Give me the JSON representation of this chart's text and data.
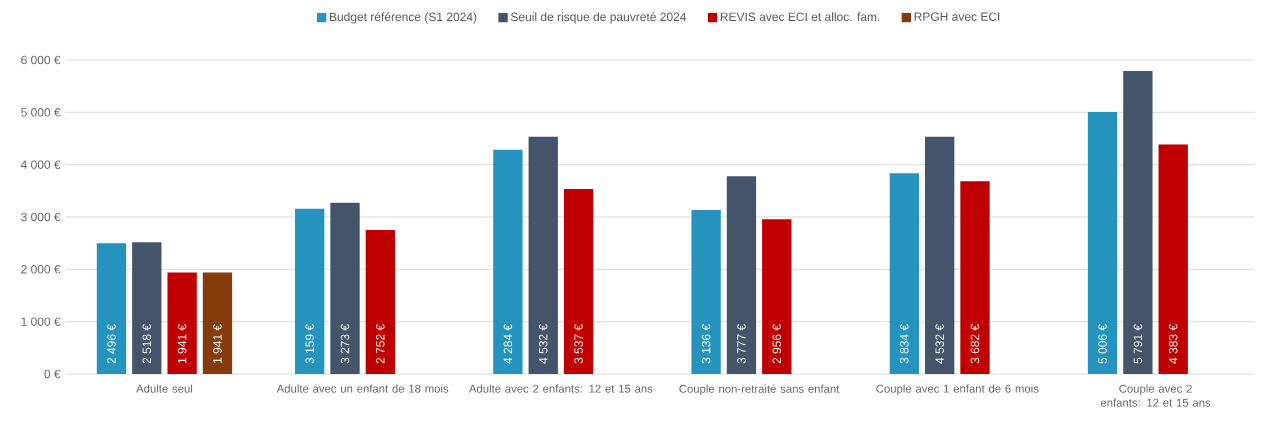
{
  "chart_data": {
    "type": "bar",
    "categories": [
      "Adulte seul",
      "Adulte avec un enfant de 18 mois",
      "Adulte avec 2 enfants: 12 et 15 ans",
      "Couple non-retraité sans enfant",
      "Couple avec 1 enfant de 6 mois",
      "Couple avec 2 enfants:  12 et 15 ans"
    ],
    "series": [
      {
        "name": "Budget référence (S1 2024)",
        "color": "#2494be",
        "values": [
          2496,
          3159,
          4284,
          3136,
          3834,
          5006
        ],
        "value_labels": [
          "2 496 €",
          "3 159 €",
          "4 284 €",
          "3 136 €",
          "3 834 €",
          "5 006 €"
        ]
      },
      {
        "name": "Seuil de risque de pauvreté 2024",
        "color": "#44546a",
        "values": [
          2518,
          3273,
          4532,
          3777,
          4532,
          5791
        ],
        "value_labels": [
          "2 518 €",
          "3 273 €",
          "4 532 €",
          "3 777 €",
          "4 532 €",
          "5 791 €"
        ]
      },
      {
        "name": "REVIS avec ECI et alloc. fam.",
        "color": "#c00000",
        "values": [
          1941,
          2752,
          3537,
          2956,
          3682,
          4383
        ],
        "value_labels": [
          "1 941 €",
          "2 752 €",
          "3 537 €",
          "2 956 €",
          "3 682 €",
          "4 383 €"
        ]
      },
      {
        "name": "RPGH avec ECI",
        "color": "#843c0c",
        "values": [
          1941,
          null,
          null,
          null,
          null,
          null
        ],
        "value_labels": [
          "1 941 €",
          null,
          null,
          null,
          null,
          null
        ]
      }
    ],
    "ylim": [
      0,
      6000
    ],
    "yticks": [
      {
        "value": 0,
        "label": "0 €"
      },
      {
        "value": 1000,
        "label": "1 000 €"
      },
      {
        "value": 2000,
        "label": "2 000 €"
      },
      {
        "value": 3000,
        "label": "3 000 €"
      },
      {
        "value": 4000,
        "label": "4 000 €"
      },
      {
        "value": 5000,
        "label": "5 000 €"
      },
      {
        "value": 6000,
        "label": "6 000 €"
      }
    ],
    "grid": "y",
    "legend": "top"
  }
}
